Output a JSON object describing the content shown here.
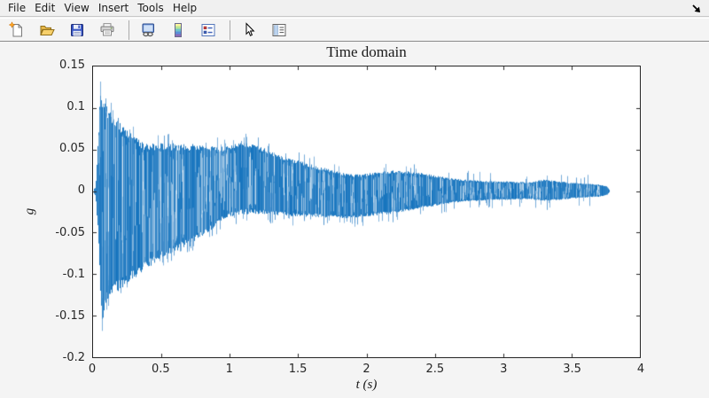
{
  "window": {
    "menu": [
      "File",
      "Edit",
      "View",
      "Insert",
      "Tools",
      "Help"
    ],
    "toolbar_icons": [
      "new-figure-icon",
      "open-icon",
      "save-icon",
      "print-icon",
      "copy-figure-icon",
      "colorbar-icon",
      "legend-icon",
      "pointer-icon",
      "figure-properties-icon"
    ],
    "cursor_icon": "mouse-cursor-arrow-se"
  },
  "colors": {
    "figure_background": "#f4f4f4",
    "plot_background": "#ffffff",
    "axis_color": "#262626",
    "line_color": "#1372bd"
  },
  "chart_data": {
    "type": "line",
    "title": "Time domain",
    "xlabel": "t (s)",
    "ylabel": "g",
    "xlim": [
      0,
      4
    ],
    "ylim": [
      -0.2,
      0.15
    ],
    "xticks": [
      0,
      0.5,
      1,
      1.5,
      2,
      2.5,
      3,
      3.5,
      4
    ],
    "xtick_labels": [
      "0",
      "0.5",
      "1",
      "1.5",
      "2",
      "2.5",
      "3",
      "3.5",
      "4"
    ],
    "yticks": [
      0.15,
      0.1,
      0.05,
      0,
      -0.05,
      -0.1,
      -0.15,
      -0.2
    ],
    "ytick_labels": [
      "0.15",
      "0.1",
      "0.05",
      "0",
      "-0.05",
      "-0.1",
      "-0.15",
      "-0.2"
    ],
    "grid": false,
    "legend": null,
    "line_color": "#1372bd",
    "signal_start_t": 0.004,
    "signal_end_t": 3.78,
    "envelope": {
      "t": [
        0.0,
        0.02,
        0.04,
        0.055,
        0.065,
        0.08,
        0.1,
        0.15,
        0.2,
        0.25,
        0.3,
        0.35,
        0.4,
        0.5,
        0.6,
        0.7,
        0.8,
        0.9,
        0.95,
        1.0,
        1.1,
        1.2,
        1.3,
        1.4,
        1.5,
        1.6,
        1.7,
        1.8,
        1.9,
        2.0,
        2.1,
        2.2,
        2.3,
        2.4,
        2.5,
        2.6,
        2.7,
        2.8,
        2.9,
        3.0,
        3.1,
        3.2,
        3.3,
        3.4,
        3.5,
        3.6,
        3.7,
        3.76,
        3.78
      ],
      "top": [
        0.001,
        0.005,
        0.07,
        0.128,
        0.118,
        0.112,
        0.105,
        0.092,
        0.083,
        0.074,
        0.066,
        0.061,
        0.059,
        0.058,
        0.058,
        0.057,
        0.056,
        0.054,
        0.054,
        0.055,
        0.059,
        0.056,
        0.048,
        0.042,
        0.037,
        0.032,
        0.028,
        0.023,
        0.02,
        0.021,
        0.024,
        0.025,
        0.024,
        0.022,
        0.019,
        0.016,
        0.014,
        0.013,
        0.012,
        0.012,
        0.011,
        0.011,
        0.014,
        0.012,
        0.01,
        0.009,
        0.008,
        0.006,
        0.001
      ],
      "bottom": [
        -0.001,
        -0.006,
        -0.06,
        -0.12,
        -0.17,
        -0.15,
        -0.132,
        -0.124,
        -0.121,
        -0.113,
        -0.106,
        -0.099,
        -0.093,
        -0.081,
        -0.074,
        -0.064,
        -0.056,
        -0.043,
        -0.036,
        -0.031,
        -0.028,
        -0.028,
        -0.029,
        -0.03,
        -0.031,
        -0.031,
        -0.032,
        -0.033,
        -0.033,
        -0.031,
        -0.029,
        -0.027,
        -0.024,
        -0.021,
        -0.018,
        -0.015,
        -0.013,
        -0.012,
        -0.011,
        -0.011,
        -0.01,
        -0.01,
        -0.012,
        -0.011,
        -0.009,
        -0.008,
        -0.007,
        -0.005,
        -0.001
      ]
    }
  }
}
